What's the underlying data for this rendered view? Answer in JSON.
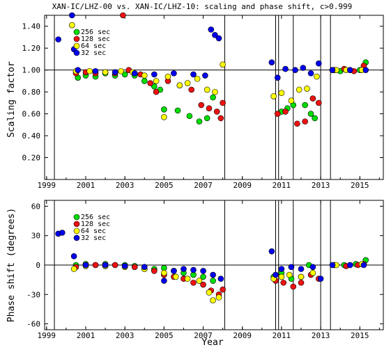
{
  "chart_data": [
    {
      "type": "scatter",
      "title": "XAN-IC/LHZ-00 vs. XAN-IC/LHZ-10: scaling and phase shift, c>0.999",
      "xlabel": "",
      "ylabel": "Scaling factor",
      "xlim": [
        1998.9,
        2016.2
      ],
      "ylim": [
        0.0,
        1.5
      ],
      "x_ticks": [
        1999,
        2001,
        2003,
        2005,
        2007,
        2009,
        2011,
        2013,
        2015
      ],
      "y_ticks": [
        0.2,
        0.4,
        0.6,
        0.8,
        1.0,
        1.2,
        1.4
      ],
      "y_tick_labels": [
        "0.20",
        "0.40",
        "0.60",
        "0.80",
        "1.00",
        "1.20",
        "1.40"
      ],
      "reference_line": 1.0,
      "vertical_lines": [
        1999.4,
        2008.1,
        2010.7,
        2010.85,
        2011.6,
        2013.0,
        2013.5
      ],
      "legend_position": "top-left",
      "series": [
        {
          "name": "256 sec",
          "color": "#00dd00",
          "points": [
            [
              2000.6,
              0.93
            ],
            [
              2001,
              0.95
            ],
            [
              2001.5,
              0.94
            ],
            [
              2002,
              0.97
            ],
            [
              2002.5,
              0.95
            ],
            [
              2003,
              0.96
            ],
            [
              2003.5,
              0.95
            ],
            [
              2004,
              0.9
            ],
            [
              2004.5,
              0.85
            ],
            [
              2004.8,
              0.82
            ],
            [
              2005,
              0.64
            ],
            [
              2005.7,
              0.63
            ],
            [
              2006.3,
              0.58
            ],
            [
              2006.8,
              0.53
            ],
            [
              2007.2,
              0.56
            ],
            [
              2007.5,
              0.75
            ],
            [
              2011,
              0.62
            ],
            [
              2011.3,
              0.65
            ],
            [
              2011.6,
              0.68
            ],
            [
              2012.2,
              0.68
            ],
            [
              2012.5,
              0.6
            ],
            [
              2012.7,
              0.56
            ],
            [
              2013.6,
              1.0
            ],
            [
              2014,
              0.99
            ],
            [
              2014.5,
              1.0
            ],
            [
              2015,
              1.0
            ],
            [
              2015.3,
              1.07
            ]
          ]
        },
        {
          "name": "128 sec",
          "color": "#ee1111",
          "points": [
            [
              2000.5,
              0.97
            ],
            [
              2001,
              0.98
            ],
            [
              2001.5,
              0.97
            ],
            [
              2002,
              0.98
            ],
            [
              2002.5,
              0.97
            ],
            [
              2002.9,
              1.5
            ],
            [
              2003.2,
              1.0
            ],
            [
              2003.8,
              0.96
            ],
            [
              2004.3,
              0.88
            ],
            [
              2004.6,
              0.8
            ],
            [
              2005.2,
              0.9
            ],
            [
              2005.8,
              0.86
            ],
            [
              2006.4,
              0.82
            ],
            [
              2006.9,
              0.68
            ],
            [
              2007.3,
              0.65
            ],
            [
              2007.7,
              0.62
            ],
            [
              2007.9,
              0.56
            ],
            [
              2008,
              0.7
            ],
            [
              2010.8,
              0.6
            ],
            [
              2011.2,
              0.62
            ],
            [
              2011.8,
              0.51
            ],
            [
              2012.2,
              0.53
            ],
            [
              2012.6,
              0.74
            ],
            [
              2012.9,
              0.7
            ],
            [
              2013.7,
              1.0
            ],
            [
              2014.2,
              1.01
            ],
            [
              2014.7,
              0.99
            ],
            [
              2015.2,
              1.04
            ]
          ]
        },
        {
          "name": "64 sec",
          "color": "#ffff00",
          "points": [
            [
              2000.3,
              1.41
            ],
            [
              2000.5,
              0.99
            ],
            [
              2001.2,
              0.99
            ],
            [
              2002,
              0.98
            ],
            [
              2002.8,
              0.99
            ],
            [
              2003.4,
              0.98
            ],
            [
              2004,
              0.95
            ],
            [
              2004.6,
              0.9
            ],
            [
              2005,
              0.57
            ],
            [
              2005.2,
              0.94
            ],
            [
              2005.8,
              0.86
            ],
            [
              2006.2,
              0.88
            ],
            [
              2006.7,
              0.92
            ],
            [
              2007.2,
              0.82
            ],
            [
              2007.6,
              0.8
            ],
            [
              2008,
              1.05
            ],
            [
              2010.6,
              0.76
            ],
            [
              2011,
              0.79
            ],
            [
              2011.5,
              0.72
            ],
            [
              2011.9,
              0.82
            ],
            [
              2012.3,
              0.83
            ],
            [
              2012.8,
              0.94
            ],
            [
              2013.8,
              1.0
            ],
            [
              2014.3,
              1.0
            ],
            [
              2015.1,
              1.0
            ]
          ]
        },
        {
          "name": "32 sec",
          "color": "#0000ee",
          "points": [
            [
              1999.6,
              1.28
            ],
            [
              2000.3,
              1.5
            ],
            [
              2000.4,
              1.19
            ],
            [
              2000.6,
              1.0
            ],
            [
              2001.5,
              0.99
            ],
            [
              2002.5,
              0.98
            ],
            [
              2003.5,
              0.97
            ],
            [
              2004.5,
              0.96
            ],
            [
              2005.5,
              0.97
            ],
            [
              2006.5,
              0.96
            ],
            [
              2007.1,
              0.95
            ],
            [
              2007.4,
              1.37
            ],
            [
              2007.6,
              1.32
            ],
            [
              2007.8,
              1.29
            ],
            [
              2010.5,
              1.07
            ],
            [
              2010.8,
              0.93
            ],
            [
              2011.2,
              1.01
            ],
            [
              2011.7,
              1.0
            ],
            [
              2012.1,
              1.02
            ],
            [
              2012.5,
              0.97
            ],
            [
              2012.9,
              1.06
            ],
            [
              2013.6,
              1.0
            ],
            [
              2014.5,
              1.0
            ],
            [
              2015.3,
              1.0
            ]
          ]
        }
      ]
    },
    {
      "type": "scatter",
      "title": "",
      "xlabel": "Year",
      "ylabel": "Phase shift (degrees)",
      "xlim": [
        1998.9,
        2016.2
      ],
      "ylim": [
        -66,
        66
      ],
      "x_ticks": [
        1999,
        2001,
        2003,
        2005,
        2007,
        2009,
        2011,
        2013,
        2015
      ],
      "y_ticks": [
        -60,
        -30,
        0,
        30,
        60
      ],
      "y_tick_labels": [
        "-60",
        "-30",
        "0",
        "30",
        "60"
      ],
      "reference_line": 0,
      "vertical_lines": [
        1999.4,
        2008.1,
        2010.7,
        2010.85,
        2011.6,
        2013.0,
        2013.5
      ],
      "legend_position": "top-left",
      "series": [
        {
          "name": "256 sec",
          "color": "#00dd00",
          "points": [
            [
              2000.5,
              0
            ],
            [
              2001,
              1
            ],
            [
              2001.5,
              0
            ],
            [
              2002,
              1
            ],
            [
              2002.5,
              0
            ],
            [
              2003,
              0
            ],
            [
              2003.5,
              -1
            ],
            [
              2004,
              -2
            ],
            [
              2004.5,
              -4
            ],
            [
              2005,
              -3
            ],
            [
              2005.5,
              -6
            ],
            [
              2006,
              -8
            ],
            [
              2006.5,
              -10
            ],
            [
              2007,
              -12
            ],
            [
              2007.5,
              -16
            ],
            [
              2010.6,
              -12
            ],
            [
              2011,
              -8
            ],
            [
              2011.5,
              -14
            ],
            [
              2012,
              -12
            ],
            [
              2012.4,
              0
            ],
            [
              2013.7,
              0
            ],
            [
              2014.2,
              0
            ],
            [
              2014.8,
              1
            ],
            [
              2015.3,
              5
            ]
          ]
        },
        {
          "name": "128 sec",
          "color": "#ee1111",
          "points": [
            [
              2000.5,
              -2
            ],
            [
              2001,
              0
            ],
            [
              2001.5,
              0
            ],
            [
              2002,
              -1
            ],
            [
              2002.5,
              0
            ],
            [
              2003,
              -1
            ],
            [
              2003.5,
              -2
            ],
            [
              2004,
              -4
            ],
            [
              2004.5,
              -6
            ],
            [
              2005,
              -10
            ],
            [
              2005.5,
              -12
            ],
            [
              2006,
              -14
            ],
            [
              2006.5,
              -18
            ],
            [
              2007,
              -20
            ],
            [
              2007.4,
              -26
            ],
            [
              2007.8,
              -30
            ],
            [
              2008,
              -25
            ],
            [
              2010.7,
              -16
            ],
            [
              2011.1,
              -18
            ],
            [
              2011.6,
              -22
            ],
            [
              2012,
              -18
            ],
            [
              2012.5,
              -10
            ],
            [
              2012.9,
              -14
            ],
            [
              2013.7,
              0
            ],
            [
              2014.3,
              -1
            ],
            [
              2014.9,
              0
            ],
            [
              2015.2,
              1
            ]
          ]
        },
        {
          "name": "64 sec",
          "color": "#ffff00",
          "points": [
            [
              2000.4,
              -4
            ],
            [
              2001,
              -1
            ],
            [
              2002,
              -1
            ],
            [
              2003,
              -2
            ],
            [
              2004,
              -4
            ],
            [
              2005,
              -8
            ],
            [
              2005.6,
              -12
            ],
            [
              2006.2,
              -14
            ],
            [
              2006.8,
              -16
            ],
            [
              2007.3,
              -28
            ],
            [
              2007.5,
              -36
            ],
            [
              2007.8,
              -33
            ],
            [
              2010.6,
              -14
            ],
            [
              2011,
              -12
            ],
            [
              2011.4,
              -10
            ],
            [
              2012,
              -12
            ],
            [
              2012.6,
              -8
            ],
            [
              2013.8,
              0
            ],
            [
              2014.5,
              0
            ],
            [
              2015.1,
              1
            ]
          ]
        },
        {
          "name": "32 sec",
          "color": "#0000ee",
          "points": [
            [
              1999.6,
              32
            ],
            [
              1999.8,
              33
            ],
            [
              2000.4,
              9
            ],
            [
              2001,
              0
            ],
            [
              2002,
              0
            ],
            [
              2003,
              -1
            ],
            [
              2004,
              -2
            ],
            [
              2005,
              -16
            ],
            [
              2005.5,
              -6
            ],
            [
              2006,
              -4
            ],
            [
              2006.5,
              -5
            ],
            [
              2007,
              -6
            ],
            [
              2007.5,
              -10
            ],
            [
              2007.9,
              -14
            ],
            [
              2010.5,
              14
            ],
            [
              2010.7,
              -10
            ],
            [
              2011,
              -4
            ],
            [
              2011.5,
              -2
            ],
            [
              2012,
              -4
            ],
            [
              2012.6,
              -2
            ],
            [
              2013,
              -14
            ],
            [
              2013.6,
              0
            ],
            [
              2014.5,
              0
            ],
            [
              2015.2,
              0
            ]
          ]
        }
      ]
    }
  ]
}
